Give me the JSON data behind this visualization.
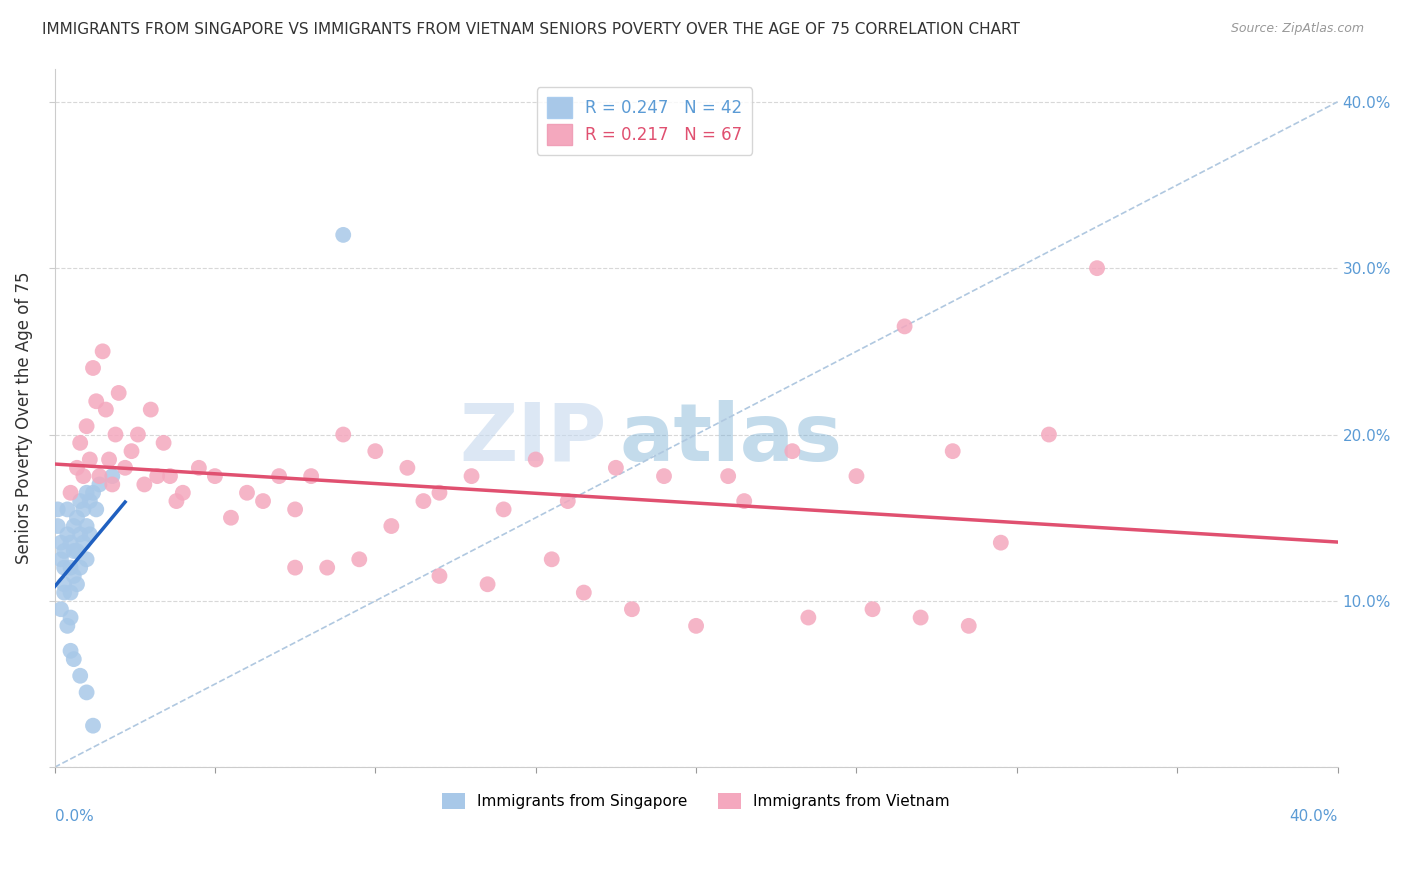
{
  "title": "IMMIGRANTS FROM SINGAPORE VS IMMIGRANTS FROM VIETNAM SENIORS POVERTY OVER THE AGE OF 75 CORRELATION CHART",
  "source": "Source: ZipAtlas.com",
  "ylabel": "Seniors Poverty Over the Age of 75",
  "y_ticks": [
    0.0,
    0.1,
    0.2,
    0.3,
    0.4
  ],
  "y_tick_labels": [
    "",
    "10.0%",
    "20.0%",
    "30.0%",
    "40.0%"
  ],
  "x_range": [
    0.0,
    0.4
  ],
  "y_range": [
    0.0,
    0.42
  ],
  "singapore_R": 0.247,
  "singapore_N": 42,
  "vietnam_R": 0.217,
  "vietnam_N": 67,
  "singapore_color": "#a8c8e8",
  "vietnam_color": "#f4a8be",
  "singapore_line_color": "#2060c0",
  "vietnam_line_color": "#e05070",
  "ref_line_color": "#b0c8e0",
  "background_color": "#ffffff",
  "watermark_zip": "ZIP",
  "watermark_atlas": "atlas",
  "grid_color": "#d8d8d8",
  "axis_color": "#cccccc",
  "label_color": "#5b9bd5",
  "singapore_x": [
    0.001,
    0.001,
    0.002,
    0.002,
    0.002,
    0.003,
    0.003,
    0.003,
    0.003,
    0.004,
    0.004,
    0.004,
    0.005,
    0.005,
    0.005,
    0.005,
    0.006,
    0.006,
    0.006,
    0.007,
    0.007,
    0.007,
    0.008,
    0.008,
    0.008,
    0.009,
    0.009,
    0.01,
    0.01,
    0.01,
    0.011,
    0.011,
    0.012,
    0.013,
    0.014,
    0.005,
    0.006,
    0.008,
    0.01,
    0.012,
    0.018,
    0.09
  ],
  "singapore_y": [
    0.155,
    0.145,
    0.135,
    0.125,
    0.095,
    0.13,
    0.12,
    0.11,
    0.105,
    0.155,
    0.14,
    0.085,
    0.135,
    0.12,
    0.105,
    0.09,
    0.145,
    0.13,
    0.115,
    0.15,
    0.13,
    0.11,
    0.16,
    0.14,
    0.12,
    0.155,
    0.135,
    0.165,
    0.145,
    0.125,
    0.16,
    0.14,
    0.165,
    0.155,
    0.17,
    0.07,
    0.065,
    0.055,
    0.045,
    0.025,
    0.175,
    0.32
  ],
  "vietnam_x": [
    0.005,
    0.007,
    0.008,
    0.009,
    0.01,
    0.011,
    0.012,
    0.013,
    0.014,
    0.015,
    0.016,
    0.017,
    0.018,
    0.019,
    0.02,
    0.022,
    0.024,
    0.026,
    0.028,
    0.03,
    0.032,
    0.034,
    0.036,
    0.038,
    0.04,
    0.045,
    0.05,
    0.055,
    0.06,
    0.065,
    0.07,
    0.075,
    0.08,
    0.09,
    0.1,
    0.11,
    0.12,
    0.13,
    0.14,
    0.15,
    0.16,
    0.175,
    0.19,
    0.21,
    0.23,
    0.25,
    0.265,
    0.28,
    0.295,
    0.31,
    0.325,
    0.12,
    0.095,
    0.085,
    0.075,
    0.105,
    0.115,
    0.135,
    0.155,
    0.165,
    0.18,
    0.2,
    0.215,
    0.235,
    0.255,
    0.27,
    0.285
  ],
  "vietnam_y": [
    0.165,
    0.18,
    0.195,
    0.175,
    0.205,
    0.185,
    0.24,
    0.22,
    0.175,
    0.25,
    0.215,
    0.185,
    0.17,
    0.2,
    0.225,
    0.18,
    0.19,
    0.2,
    0.17,
    0.215,
    0.175,
    0.195,
    0.175,
    0.16,
    0.165,
    0.18,
    0.175,
    0.15,
    0.165,
    0.16,
    0.175,
    0.155,
    0.175,
    0.2,
    0.19,
    0.18,
    0.165,
    0.175,
    0.155,
    0.185,
    0.16,
    0.18,
    0.175,
    0.175,
    0.19,
    0.175,
    0.265,
    0.19,
    0.135,
    0.2,
    0.3,
    0.115,
    0.125,
    0.12,
    0.12,
    0.145,
    0.16,
    0.11,
    0.125,
    0.105,
    0.095,
    0.085,
    0.16,
    0.09,
    0.095,
    0.09,
    0.085
  ]
}
